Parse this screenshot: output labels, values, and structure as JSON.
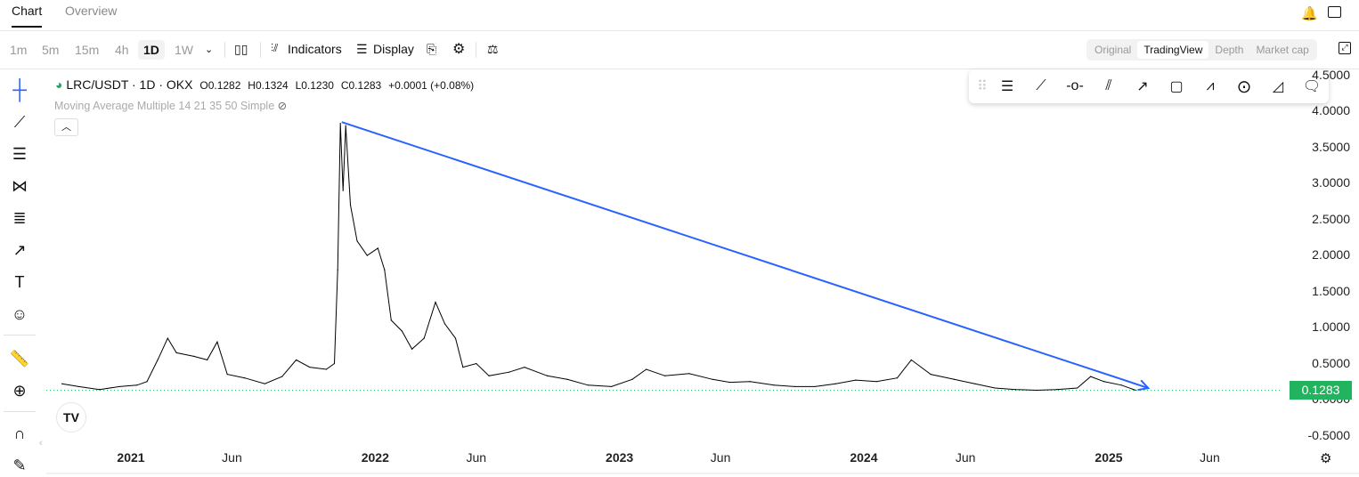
{
  "tabs": [
    {
      "label": "Chart",
      "active": true
    },
    {
      "label": "Overview",
      "active": false
    }
  ],
  "top_icons": [
    "alert-add-icon",
    "layout-icon"
  ],
  "timeframes": [
    {
      "label": "1m"
    },
    {
      "label": "5m"
    },
    {
      "label": "15m"
    },
    {
      "label": "4h"
    },
    {
      "label": "1D",
      "selected": true
    },
    {
      "label": "1W"
    }
  ],
  "toolbar": {
    "indicators": "Indicators",
    "display": "Display"
  },
  "views": [
    {
      "label": "Original"
    },
    {
      "label": "TradingView",
      "selected": true
    },
    {
      "label": "Depth"
    },
    {
      "label": "Market cap"
    }
  ],
  "legend": {
    "symbol": "LRC/USDT · 1D · OKX",
    "open": "O0.1282",
    "high": "H0.1324",
    "low": "L0.1230",
    "close": "C0.1283",
    "change": "+0.0001 (+0.08%)"
  },
  "indicator": "Moving Average Multiple 14 21 35 50 Simple",
  "current_price": "0.1283",
  "colors": {
    "trendline": "#2962ff",
    "price_tag": "#22b35e",
    "crosshair": "#2962ff",
    "candles": "#000000"
  },
  "chart_data": {
    "type": "line",
    "price_axis": {
      "ticks": [
        "4.5000",
        "4.0000",
        "3.5000",
        "3.0000",
        "2.5000",
        "2.0000",
        "1.5000",
        "1.0000",
        "0.5000",
        "0.0000",
        "-0.5000"
      ],
      "range": [
        -0.6,
        4.6
      ]
    },
    "time_axis": {
      "ticks": [
        {
          "label": "2021",
          "date": "2021-01-01",
          "year": true
        },
        {
          "label": "Jun",
          "date": "2021-06-01"
        },
        {
          "label": "2022",
          "date": "2022-01-01",
          "year": true
        },
        {
          "label": "Jun",
          "date": "2022-06-01"
        },
        {
          "label": "2023",
          "date": "2023-01-01",
          "year": true
        },
        {
          "label": "Jun",
          "date": "2023-06-01"
        },
        {
          "label": "2024",
          "date": "2024-01-01",
          "year": true
        },
        {
          "label": "Jun",
          "date": "2024-06-01"
        },
        {
          "label": "2025",
          "date": "2025-01-01",
          "year": true
        },
        {
          "label": "Jun",
          "date": "2025-06-01"
        }
      ]
    },
    "series": [
      {
        "points": [
          [
            "2020-09-20",
            0.22
          ],
          [
            "2020-10-15",
            0.18
          ],
          [
            "2020-11-15",
            0.14
          ],
          [
            "2020-12-15",
            0.18
          ],
          [
            "2021-01-10",
            0.2
          ],
          [
            "2021-01-25",
            0.25
          ],
          [
            "2021-02-10",
            0.55
          ],
          [
            "2021-02-25",
            0.85
          ],
          [
            "2021-03-10",
            0.65
          ],
          [
            "2021-04-05",
            0.6
          ],
          [
            "2021-04-25",
            0.55
          ],
          [
            "2021-05-10",
            0.8
          ],
          [
            "2021-05-25",
            0.35
          ],
          [
            "2021-06-20",
            0.3
          ],
          [
            "2021-07-20",
            0.22
          ],
          [
            "2021-08-15",
            0.32
          ],
          [
            "2021-09-05",
            0.55
          ],
          [
            "2021-09-25",
            0.45
          ],
          [
            "2021-10-20",
            0.42
          ],
          [
            "2021-11-01",
            0.5
          ],
          [
            "2021-11-06",
            1.8
          ],
          [
            "2021-11-10",
            3.83
          ],
          [
            "2021-11-14",
            2.9
          ],
          [
            "2021-11-18",
            3.8
          ],
          [
            "2021-11-25",
            2.7
          ],
          [
            "2021-12-05",
            2.2
          ],
          [
            "2021-12-20",
            2.0
          ],
          [
            "2022-01-05",
            2.1
          ],
          [
            "2022-01-15",
            1.8
          ],
          [
            "2022-01-25",
            1.1
          ],
          [
            "2022-02-10",
            0.95
          ],
          [
            "2022-02-25",
            0.7
          ],
          [
            "2022-03-15",
            0.85
          ],
          [
            "2022-04-01",
            1.35
          ],
          [
            "2022-04-15",
            1.05
          ],
          [
            "2022-05-01",
            0.85
          ],
          [
            "2022-05-12",
            0.45
          ],
          [
            "2022-06-01",
            0.5
          ],
          [
            "2022-06-20",
            0.33
          ],
          [
            "2022-07-20",
            0.38
          ],
          [
            "2022-08-12",
            0.45
          ],
          [
            "2022-09-15",
            0.33
          ],
          [
            "2022-10-15",
            0.28
          ],
          [
            "2022-11-15",
            0.2
          ],
          [
            "2022-12-20",
            0.18
          ],
          [
            "2023-01-20",
            0.28
          ],
          [
            "2023-02-10",
            0.42
          ],
          [
            "2023-03-10",
            0.33
          ],
          [
            "2023-04-15",
            0.36
          ],
          [
            "2023-05-20",
            0.28
          ],
          [
            "2023-06-15",
            0.24
          ],
          [
            "2023-07-15",
            0.25
          ],
          [
            "2023-08-20",
            0.2
          ],
          [
            "2023-09-20",
            0.18
          ],
          [
            "2023-10-20",
            0.18
          ],
          [
            "2023-11-20",
            0.22
          ],
          [
            "2023-12-20",
            0.27
          ],
          [
            "2024-01-20",
            0.25
          ],
          [
            "2024-02-20",
            0.3
          ],
          [
            "2024-03-12",
            0.55
          ],
          [
            "2024-04-10",
            0.35
          ],
          [
            "2024-05-15",
            0.28
          ],
          [
            "2024-06-15",
            0.22
          ],
          [
            "2024-07-15",
            0.16
          ],
          [
            "2024-08-15",
            0.14
          ],
          [
            "2024-09-15",
            0.13
          ],
          [
            "2024-10-15",
            0.14
          ],
          [
            "2024-11-15",
            0.16
          ],
          [
            "2024-12-05",
            0.32
          ],
          [
            "2024-12-25",
            0.25
          ],
          [
            "2025-01-20",
            0.2
          ],
          [
            "2025-02-10",
            0.13
          ]
        ]
      }
    ],
    "drawings": [
      {
        "type": "trend-arrow",
        "from": [
          "2021-11-12",
          3.85
        ],
        "to": [
          "2025-03-01",
          0.16
        ]
      }
    ],
    "last_price_line": 0.1283,
    "grid": false
  }
}
